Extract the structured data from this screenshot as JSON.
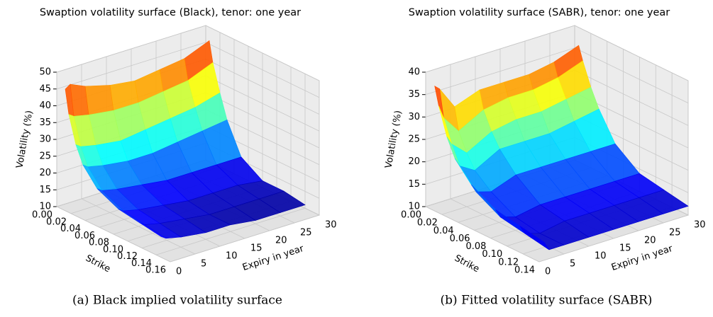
{
  "chart_data": [
    {
      "type": "surface",
      "title": "Swaption volatility surface (Black), tenor: one year",
      "caption": "(a) Black implied volatility surface",
      "xlabel": "Strike",
      "ylabel": "Expiry in year",
      "zlabel": "Volatility (%)",
      "colormap": "jet",
      "x": [
        0.005,
        0.01,
        0.02,
        0.03,
        0.05,
        0.08,
        0.11,
        0.14
      ],
      "y": [
        1,
        2,
        5,
        10,
        15,
        20,
        25,
        30
      ],
      "z": [
        [
          45,
          46,
          44,
          42,
          41,
          42,
          43,
          46
        ],
        [
          38,
          37,
          36,
          35,
          35,
          36,
          37,
          40
        ],
        [
          30,
          29,
          28,
          27,
          28,
          29,
          30,
          32
        ],
        [
          25,
          24,
          23,
          22,
          22,
          23,
          24,
          25
        ],
        [
          20,
          19,
          18,
          17,
          16,
          16,
          16,
          16
        ],
        [
          17,
          16,
          15,
          14,
          13,
          13,
          13,
          12
        ],
        [
          16,
          15,
          14,
          13,
          12,
          12,
          12,
          12
        ],
        [
          15,
          14,
          13,
          12,
          12,
          11,
          11,
          11
        ]
      ],
      "xlim": [
        0,
        0.16
      ],
      "ylim": [
        0,
        30
      ],
      "zlim": [
        10,
        50
      ],
      "xticks": [
        {
          "value": 0,
          "label": "0.00"
        },
        0.02,
        0.04,
        0.06,
        0.08,
        {
          "value": 0.1,
          "label": "0.10"
        },
        0.12,
        0.14,
        0.16
      ],
      "yticks": [
        0,
        5,
        10,
        15,
        20,
        25,
        30
      ],
      "zticks": [
        10,
        15,
        20,
        25,
        30,
        35,
        40,
        45,
        50
      ]
    },
    {
      "type": "surface",
      "title": "Swaption volatility surface (SABR), tenor: one year",
      "caption": "(b) Fitted volatility surface (SABR)",
      "xlabel": "Strike",
      "ylabel": "Expiry in year",
      "zlabel": "Volatility (%)",
      "colormap": "jet",
      "x": [
        0.005,
        0.01,
        0.02,
        0.03,
        0.05,
        0.08,
        0.11,
        0.14
      ],
      "y": [
        1,
        2,
        5,
        10,
        15,
        20,
        25,
        30
      ],
      "z": [
        [
          37,
          36,
          31,
          33,
          33,
          33,
          34,
          36
        ],
        [
          33,
          30,
          26,
          29,
          30,
          30,
          31,
          33
        ],
        [
          27,
          25,
          22,
          25,
          26,
          26,
          27,
          28
        ],
        [
          23,
          21,
          19,
          22,
          22,
          22,
          23,
          24
        ],
        [
          19,
          17,
          16,
          18,
          18,
          18,
          18,
          18
        ],
        [
          16,
          14,
          13,
          14,
          14,
          14,
          14,
          14
        ],
        [
          15,
          13,
          12,
          13,
          13,
          13,
          13,
          13
        ],
        [
          14,
          12,
          12,
          12,
          12,
          12,
          12,
          12
        ]
      ],
      "xlim": [
        0,
        0.14
      ],
      "ylim": [
        0,
        30
      ],
      "zlim": [
        10,
        40
      ],
      "xticks": [
        {
          "value": 0,
          "label": "0.00"
        },
        0.02,
        0.04,
        0.06,
        0.08,
        {
          "value": 0.1,
          "label": "0.10"
        },
        0.12,
        0.14
      ],
      "yticks": [
        0,
        5,
        10,
        15,
        20,
        25,
        30
      ],
      "zticks": [
        10,
        15,
        20,
        25,
        30,
        35,
        40
      ]
    }
  ]
}
